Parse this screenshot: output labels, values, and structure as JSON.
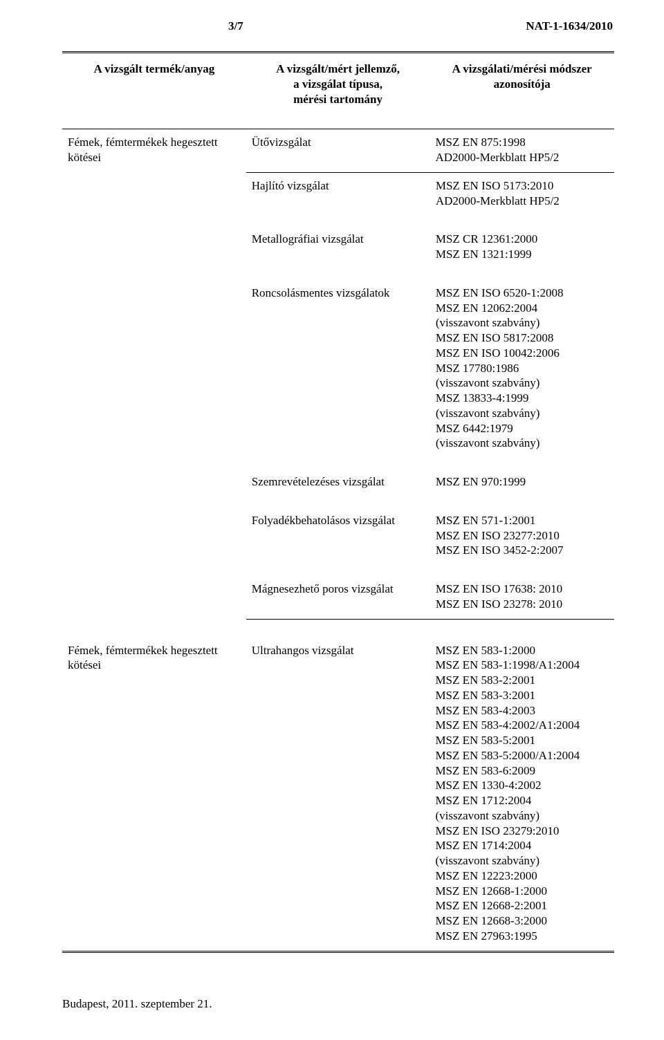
{
  "header": {
    "page_number": "3/7",
    "doc_id": "NAT-1-1634/2010"
  },
  "columns": {
    "c1": "A vizsgált termék/anyag",
    "c2": "A vizsgált/mért jellemző,\na vizsgálat típusa,\nmérési tartomány",
    "c3": "A vizsgálati/mérési módszer\nazonosítója"
  },
  "section1": {
    "product": "Fémek, fémtermékek hegesztett\nkötései",
    "r1": {
      "char": "Ütővizsgálat",
      "std": "MSZ EN 875:1998\nAD2000-Merkblatt HP5/2"
    }
  },
  "section2": {
    "rows": [
      {
        "char": "Hajlító vizsgálat",
        "std": "MSZ EN ISO 5173:2010\nAD2000-Merkblatt HP5/2"
      },
      {
        "char": "Metallográfiai vizsgálat",
        "std": "MSZ CR 12361:2000\nMSZ EN 1321:1999"
      },
      {
        "char": "Roncsolásmentes vizsgálatok",
        "std": "MSZ EN ISO 6520-1:2008\nMSZ EN 12062:2004\n(visszavont szabvány)\nMSZ EN ISO 5817:2008\nMSZ EN ISO 10042:2006\nMSZ 17780:1986\n(visszavont szabvány)\nMSZ 13833-4:1999\n(visszavont szabvány)\nMSZ 6442:1979\n(visszavont szabvány)"
      },
      {
        "char": "Szemrevételezéses vizsgálat",
        "std": "MSZ EN 970:1999"
      },
      {
        "char": "Folyadékbehatolásos vizsgálat",
        "std": "MSZ EN 571-1:2001\nMSZ EN ISO 23277:2010\nMSZ EN ISO 3452-2:2007"
      },
      {
        "char": "Mágnesezhető poros vizsgálat",
        "std": "MSZ EN ISO 17638: 2010\nMSZ EN ISO 23278: 2010"
      }
    ]
  },
  "section3": {
    "product": "Fémek, fémtermékek hegesztett\nkötései",
    "r1": {
      "char": "Ultrahangos vizsgálat",
      "std": "MSZ EN 583-1:2000\nMSZ EN 583-1:1998/A1:2004\nMSZ EN 583-2:2001\nMSZ EN 583-3:2001\nMSZ EN 583-4:2003\nMSZ EN 583-4:2002/A1:2004\nMSZ EN 583-5:2001\nMSZ EN 583-5:2000/A1:2004\nMSZ EN 583-6:2009\nMSZ EN 1330-4:2002\nMSZ EN 1712:2004\n(visszavont szabvány)\nMSZ EN ISO 23279:2010\nMSZ EN 1714:2004\n(visszavont szabvány)\nMSZ EN 12223:2000\nMSZ EN 12668-1:2000\nMSZ EN 12668-2:2001\nMSZ EN 12668-3:2000\nMSZ EN 27963:1995"
    }
  },
  "footer": "Budapest, 2011. szeptember 21.",
  "colors": {
    "text": "#000000",
    "bg": "#ffffff",
    "watermark": "#d4dce2"
  }
}
